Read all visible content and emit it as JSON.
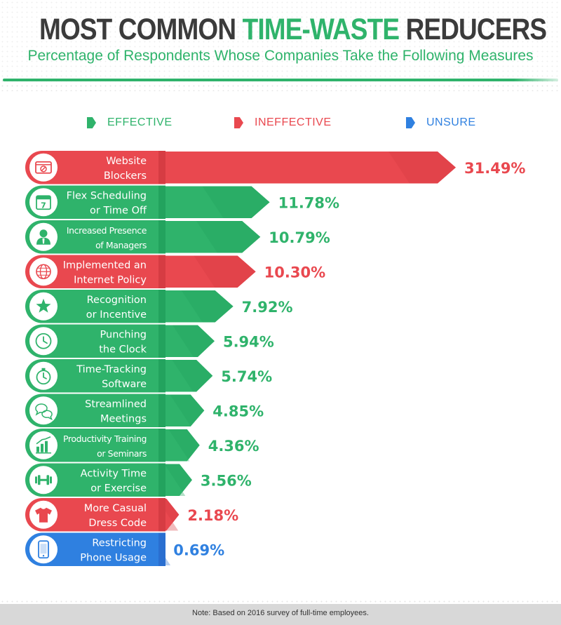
{
  "header": {
    "title_prefix": "MOST COMMON ",
    "title_highlight": "TIME-WASTE",
    "title_suffix": " REDUCERS",
    "subtitle": "Percentage of Respondents Whose Companies Take the Following Measures"
  },
  "legend": [
    {
      "label": "EFFECTIVE",
      "color": "#2fb36b"
    },
    {
      "label": "INEFFECTIVE",
      "color": "#e9484f"
    },
    {
      "label": "UNSURE",
      "color": "#2f80e0"
    }
  ],
  "colors": {
    "effective": "#2fb36b",
    "effective_dark": "#23a35e",
    "ineffective": "#e9484f",
    "ineffective_dark": "#d63c43",
    "unsure": "#2f80e0",
    "unsure_dark": "#2a6fd0"
  },
  "chart_data": {
    "type": "bar",
    "title": "MOST COMMON TIME-WASTE REDUCERS",
    "subtitle": "Percentage of Respondents Whose Companies Take the Following Measures",
    "categories": [
      [
        "Website",
        "Blockers"
      ],
      [
        "Flex Scheduling",
        "or Time Off"
      ],
      [
        "Increased Presence",
        "of Managers"
      ],
      [
        "Implemented an",
        "Internet Policy"
      ],
      [
        "Recognition",
        "or Incentive"
      ],
      [
        "Punching",
        "the Clock"
      ],
      [
        "Time-Tracking",
        "Software"
      ],
      [
        "Streamlined",
        "Meetings"
      ],
      [
        "Productivity Training",
        "or Seminars"
      ],
      [
        "Activity Time",
        "or Exercise"
      ],
      [
        "More Casual",
        "Dress Code"
      ],
      [
        "Restricting",
        "Phone Usage"
      ]
    ],
    "values": [
      31.49,
      11.78,
      10.79,
      10.3,
      7.92,
      5.94,
      5.74,
      4.85,
      4.36,
      3.56,
      2.18,
      0.69
    ],
    "value_labels": [
      "31.49%",
      "11.78%",
      "10.79%",
      "10.30%",
      "7.92%",
      "5.94%",
      "5.74%",
      "4.85%",
      "4.36%",
      "3.56%",
      "2.18%",
      "0.69%"
    ],
    "status": [
      "ineffective",
      "effective",
      "effective",
      "ineffective",
      "effective",
      "effective",
      "effective",
      "effective",
      "effective",
      "effective",
      "ineffective",
      "unsure"
    ],
    "icons": [
      "blocked-site-icon",
      "calendar-icon",
      "manager-icon",
      "globe-icon",
      "star-icon",
      "clock-icon",
      "stopwatch-icon",
      "chat-bubbles-icon",
      "bar-chart-icon",
      "dumbbell-icon",
      "t-shirt-icon",
      "phone-icon"
    ],
    "legend": [
      "EFFECTIVE",
      "INEFFECTIVE",
      "UNSURE"
    ],
    "xlim": [
      0,
      31.49
    ],
    "grid": false
  },
  "footer": {
    "note": "Note: Based on 2016 survey of full-time employees."
  }
}
